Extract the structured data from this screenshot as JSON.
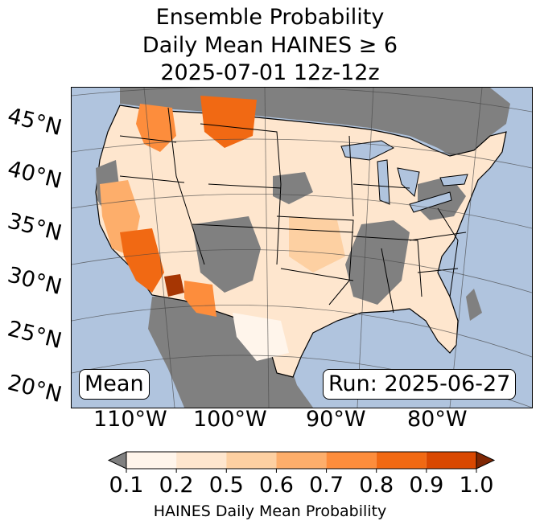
{
  "title": {
    "line1": "Ensemble Probability",
    "line2": "Daily Mean HAINES ≥ 6",
    "line3": "2025-07-01 12z-12z"
  },
  "map": {
    "latitude_labels": [
      "45°N",
      "40°N",
      "35°N",
      "30°N",
      "25°N",
      "20°N"
    ],
    "longitude_labels": [
      "110°W",
      "100°W",
      "90°W",
      "80°W"
    ],
    "mean_label": "Mean",
    "run_label": "Run: 2025-06-27",
    "colors": {
      "ocean": "#b0c4de",
      "land_masked": "#808080",
      "lakes": "#b0c4de"
    }
  },
  "colorbar": {
    "label": "HAINES Daily Mean Probability",
    "ticks": [
      "0.1",
      "0.2",
      "0.5",
      "0.6",
      "0.7",
      "0.8",
      "0.9",
      "1.0"
    ],
    "colors": [
      "#fff5eb",
      "#fee6ce",
      "#fdd0a2",
      "#fdae6b",
      "#fd8d3c",
      "#f16913",
      "#d94801",
      "#a63603"
    ],
    "under_color": "#808080",
    "over_color": "#7f2704"
  }
}
